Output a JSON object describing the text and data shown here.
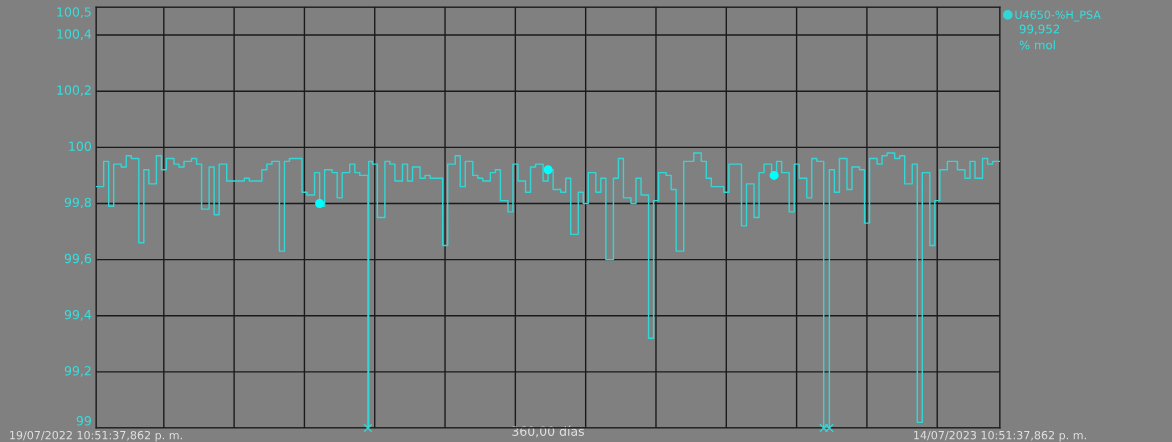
{
  "chart_data": {
    "type": "step",
    "legend": "top right",
    "grid": true,
    "marker": "none",
    "line_style": "solid",
    "xlabel": "360,00 días",
    "xlim": [
      "2022-07-19T22:51",
      "2023-07-14T22:51"
    ],
    "ylim": [
      99,
      100.5
    ],
    "xticks": [
      {
        "value": "2022-07-19T22:51",
        "label": "19/07/2022 10:51:37,862 p. m."
      },
      {
        "value": "2022-08-15T22:51",
        "label": null
      },
      {
        "value": "2022-09-12T22:51",
        "label": null
      },
      {
        "value": "2022-10-10T22:51",
        "label": null
      },
      {
        "value": "2022-11-07T22:51",
        "label": null
      },
      {
        "value": "2022-12-05T22:51",
        "label": null
      },
      {
        "value": "2023-01-02T22:51",
        "label": null
      },
      {
        "value": "2023-01-30T22:51",
        "label": null
      },
      {
        "value": "2023-02-27T22:51",
        "label": null
      },
      {
        "value": "2023-03-27T22:51",
        "label": null
      },
      {
        "value": "2023-04-24T22:51",
        "label": null
      },
      {
        "value": "2023-05-22T22:51",
        "label": null
      },
      {
        "value": "2023-06-19T22:51",
        "label": null
      },
      {
        "value": "2023-07-14T22:51",
        "label": "14/07/2023 10:51:37,862 p. m."
      }
    ],
    "yticks": [
      99,
      {
        "value": 99.2,
        "label": "99,2"
      },
      {
        "value": 99.4,
        "label": "99,4"
      },
      {
        "value": 99.6,
        "label": "99,6"
      },
      {
        "value": 99.8,
        "label": "99,8"
      },
      100,
      {
        "value": 100.2,
        "label": "100,2"
      },
      {
        "value": 100.4,
        "label": "100,4"
      },
      {
        "value": 100.5,
        "label": "100,5"
      }
    ],
    "annotations": [
      "99,952",
      "% mol"
    ],
    "series": [
      {
        "name": "U4650-%H_PSA",
        "color": "#33d6d6",
        "x": [
          "2022-07-19T22:51",
          "2022-07-23",
          "2022-07-25",
          "2022-07-27",
          "2022-07-30",
          "2022-08-01",
          "2022-08-03",
          "2022-08-06",
          "2022-08-08",
          "2022-08-10",
          "2022-08-13",
          "2022-08-15",
          "2022-08-17",
          "2022-08-20",
          "2022-08-22",
          "2022-08-24",
          "2022-08-27",
          "2022-08-29",
          "2022-08-31",
          "2022-09-03",
          "2022-09-05",
          "2022-09-07",
          "2022-09-10",
          "2022-09-17",
          "2022-09-19",
          "2022-09-24",
          "2022-09-26",
          "2022-09-28",
          "2022-10-01",
          "2022-10-03",
          "2022-10-05",
          "2022-10-10",
          "2022-10-12",
          "2022-10-15",
          "2022-10-17",
          "2022-10-19",
          "2022-10-22",
          "2022-10-24",
          "2022-10-26",
          "2022-10-29",
          "2022-10-31",
          "2022-11-02",
          "2022-11-05T06:00",
          "2022-11-05T13:00",
          "2022-11-07",
          "2022-11-09",
          "2022-11-12",
          "2022-11-14",
          "2022-11-16",
          "2022-11-19",
          "2022-11-21",
          "2022-11-23",
          "2022-11-26",
          "2022-11-28",
          "2022-11-30",
          "2022-12-05",
          "2022-12-07",
          "2022-12-10",
          "2022-12-12",
          "2022-12-14",
          "2022-12-17",
          "2022-12-19",
          "2022-12-21",
          "2022-12-24",
          "2022-12-26",
          "2022-12-28",
          "2022-12-31",
          "2023-01-02",
          "2023-01-04",
          "2023-01-07",
          "2023-01-09",
          "2023-01-11",
          "2023-01-14",
          "2023-01-16",
          "2023-01-18",
          "2023-01-21",
          "2023-01-23",
          "2023-01-25",
          "2023-01-28",
          "2023-01-30",
          "2023-02-01",
          "2023-02-04",
          "2023-02-06",
          "2023-02-08",
          "2023-02-11",
          "2023-02-13",
          "2023-02-15",
          "2023-02-18",
          "2023-02-20",
          "2023-02-22",
          "2023-02-25",
          "2023-02-27",
          "2023-03-01",
          "2023-03-04",
          "2023-03-06",
          "2023-03-08",
          "2023-03-11",
          "2023-03-15",
          "2023-03-18",
          "2023-03-20",
          "2023-03-22",
          "2023-03-27",
          "2023-03-29",
          "2023-04-03",
          "2023-04-05",
          "2023-04-08",
          "2023-04-10",
          "2023-04-12",
          "2023-04-15",
          "2023-04-17",
          "2023-04-19",
          "2023-04-22",
          "2023-04-24",
          "2023-04-26",
          "2023-04-29",
          "2023-05-01",
          "2023-05-03",
          "2023-05-05T18:00",
          "2023-05-08",
          "2023-05-10",
          "2023-05-12",
          "2023-05-15",
          "2023-05-17",
          "2023-05-20",
          "2023-05-22",
          "2023-05-24",
          "2023-05-27",
          "2023-05-29",
          "2023-05-31",
          "2023-06-03",
          "2023-06-05",
          "2023-06-07",
          "2023-06-10",
          "2023-06-12",
          "2023-06-14",
          "2023-06-17",
          "2023-06-19",
          "2023-06-21",
          "2023-06-24",
          "2023-06-28",
          "2023-07-01",
          "2023-07-03",
          "2023-07-05",
          "2023-07-08",
          "2023-07-10",
          "2023-07-12",
          "2023-07-14T22:51"
        ],
        "values": [
          99.86,
          99.95,
          99.79,
          99.94,
          99.93,
          99.97,
          99.96,
          99.66,
          99.92,
          99.87,
          99.97,
          99.92,
          99.96,
          99.94,
          99.93,
          99.95,
          99.96,
          99.94,
          99.78,
          99.93,
          99.76,
          99.94,
          99.88,
          99.89,
          99.88,
          99.92,
          99.94,
          99.95,
          99.63,
          99.95,
          99.96,
          99.84,
          99.83,
          99.91,
          99.79,
          99.92,
          99.91,
          99.82,
          99.91,
          99.94,
          99.91,
          99.9,
          99.0,
          99.95,
          99.94,
          99.75,
          99.95,
          99.94,
          99.88,
          99.94,
          99.88,
          99.93,
          99.89,
          99.9,
          99.89,
          99.65,
          99.94,
          99.97,
          99.86,
          99.95,
          99.9,
          99.89,
          99.88,
          99.91,
          99.92,
          99.81,
          99.77,
          99.94,
          99.88,
          99.84,
          99.93,
          99.94,
          99.88,
          99.92,
          99.85,
          99.84,
          99.89,
          99.69,
          99.84,
          99.8,
          99.91,
          99.84,
          99.89,
          99.6,
          99.89,
          99.96,
          99.82,
          99.8,
          99.89,
          99.83,
          99.32,
          99.81,
          99.91,
          99.9,
          99.85,
          99.63,
          99.95,
          99.98,
          99.95,
          99.89,
          99.86,
          99.84,
          99.94,
          99.72,
          99.87,
          99.75,
          99.91,
          99.94,
          99.91,
          99.95,
          99.91,
          99.77,
          99.94,
          99.89,
          99.82,
          99.96,
          99.95,
          99.0,
          99.92,
          99.84,
          99.96,
          99.85,
          99.93,
          99.92,
          99.73,
          99.96,
          99.94,
          99.97,
          99.98,
          99.96,
          99.97,
          99.87,
          99.94,
          99.02,
          99.91,
          99.65,
          99.81,
          99.92,
          99.95,
          99.92,
          99.89,
          99.95,
          99.89,
          99.96,
          99.94,
          99.95,
          99.95
        ]
      },
      {
        "type": "scatter",
        "marker": "circle",
        "color": "#00ffff",
        "x": [
          "2022-10-17",
          "2023-01-16",
          "2023-04-16"
        ],
        "values": [
          99.8,
          99.92,
          99.9
        ]
      },
      {
        "type": "scatter",
        "marker": "cross",
        "color": "#33d6d6",
        "x": [
          "2022-11-05T06:00",
          "2023-05-05T18:00",
          "2023-05-08"
        ],
        "values": [
          99.0,
          99.0,
          99.0
        ]
      }
    ]
  }
}
